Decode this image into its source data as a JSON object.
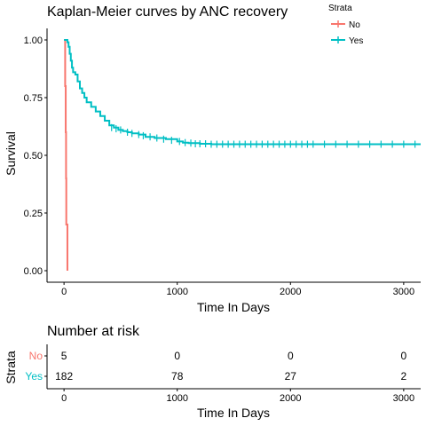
{
  "chart_data": [
    {
      "type": "line",
      "title": "Kaplan-Meier curves by ANC recovery",
      "xlabel": "Time In Days",
      "ylabel": "Survival",
      "xlim": [
        -150,
        3150
      ],
      "ylim": [
        -0.05,
        1.05
      ],
      "xticks": [
        "0",
        "1000",
        "2000",
        "3000"
      ],
      "yticks": [
        "0.00",
        "0.25",
        "0.50",
        "0.75",
        "1.00"
      ],
      "grid": false,
      "legend": {
        "title": "Strata",
        "placement": "top-right",
        "items": [
          {
            "label": "No",
            "color": "#F8766D"
          },
          {
            "label": "Yes",
            "color": "#00BFC4"
          }
        ]
      },
      "series": [
        {
          "name": "No",
          "color": "#F8766D",
          "x": [
            0,
            10,
            15,
            18,
            20,
            25,
            30
          ],
          "y": [
            1.0,
            0.8,
            0.6,
            0.4,
            0.2,
            0.2,
            0.0
          ]
        },
        {
          "name": "Yes",
          "color": "#00BFC4",
          "x": [
            0,
            20,
            30,
            40,
            50,
            60,
            70,
            80,
            100,
            120,
            140,
            160,
            180,
            200,
            240,
            280,
            320,
            360,
            400,
            440,
            480,
            520,
            560,
            600,
            660,
            720,
            800,
            900,
            1000,
            1050,
            1100,
            1200,
            1300,
            3150
          ],
          "y": [
            1.0,
            1.0,
            0.99,
            0.97,
            0.94,
            0.91,
            0.88,
            0.86,
            0.85,
            0.82,
            0.79,
            0.77,
            0.75,
            0.73,
            0.71,
            0.69,
            0.67,
            0.65,
            0.63,
            0.62,
            0.61,
            0.605,
            0.6,
            0.595,
            0.59,
            0.58,
            0.575,
            0.57,
            0.56,
            0.555,
            0.553,
            0.55,
            0.548,
            0.548
          ]
        }
      ],
      "censor_marks": {
        "Yes": [
          [
            420,
            0.62
          ],
          [
            460,
            0.615
          ],
          [
            500,
            0.61
          ],
          [
            560,
            0.6
          ],
          [
            600,
            0.595
          ],
          [
            660,
            0.59
          ],
          [
            700,
            0.585
          ],
          [
            760,
            0.58
          ],
          [
            820,
            0.575
          ],
          [
            880,
            0.57
          ],
          [
            950,
            0.565
          ],
          [
            1020,
            0.56
          ],
          [
            1070,
            0.555
          ],
          [
            1120,
            0.553
          ],
          [
            1160,
            0.55
          ],
          [
            1200,
            0.55
          ],
          [
            1250,
            0.55
          ],
          [
            1300,
            0.548
          ],
          [
            1350,
            0.548
          ],
          [
            1400,
            0.548
          ],
          [
            1450,
            0.548
          ],
          [
            1500,
            0.548
          ],
          [
            1550,
            0.548
          ],
          [
            1600,
            0.548
          ],
          [
            1650,
            0.548
          ],
          [
            1700,
            0.548
          ],
          [
            1750,
            0.548
          ],
          [
            1800,
            0.548
          ],
          [
            1850,
            0.548
          ],
          [
            1900,
            0.548
          ],
          [
            1950,
            0.548
          ],
          [
            2000,
            0.548
          ],
          [
            2050,
            0.548
          ],
          [
            2100,
            0.548
          ],
          [
            2150,
            0.548
          ],
          [
            2200,
            0.548
          ],
          [
            2300,
            0.548
          ],
          [
            2400,
            0.548
          ],
          [
            2500,
            0.548
          ],
          [
            2600,
            0.548
          ],
          [
            2700,
            0.548
          ],
          [
            2800,
            0.548
          ],
          [
            2900,
            0.548
          ],
          [
            3000,
            0.548
          ],
          [
            3100,
            0.548
          ]
        ]
      }
    },
    {
      "type": "table",
      "title": "Number at risk",
      "xlabel": "Time In Days",
      "ylabel": "Strata",
      "xlim": [
        -150,
        3150
      ],
      "xticks": [
        "0",
        "1000",
        "2000",
        "3000"
      ],
      "times": [
        0,
        1000,
        2000,
        3000
      ],
      "rows": [
        {
          "strata": "No",
          "color": "#F8766D",
          "values": [
            "5",
            "0",
            "0",
            "0"
          ]
        },
        {
          "strata": "Yes",
          "color": "#00BFC4",
          "values": [
            "182",
            "78",
            "27",
            "2"
          ]
        }
      ]
    }
  ]
}
